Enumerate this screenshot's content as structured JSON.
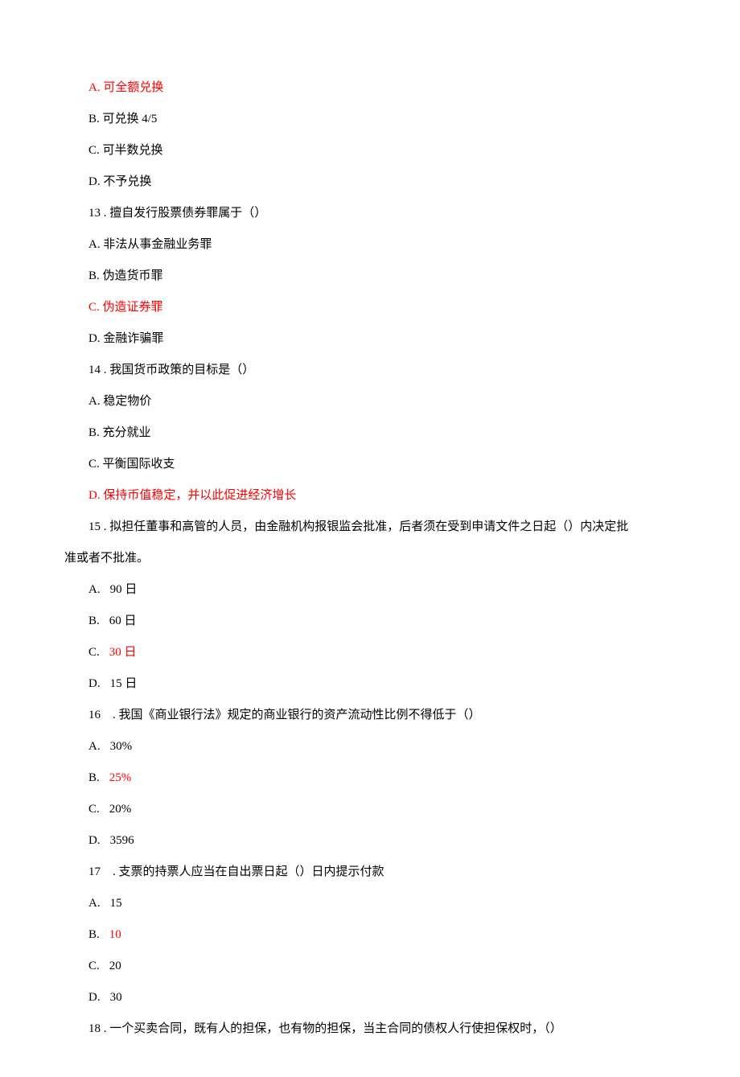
{
  "q12": {
    "a": "A. 可全额兑换",
    "b": "B. 可兑换 4/5",
    "c": "C. 可半数兑换",
    "d": "D. 不予兑换"
  },
  "q13": {
    "stem": "13 . 擅自发行股票债券罪属于（）",
    "a": "A. 非法从事金融业务罪",
    "b": "B. 伪造货币罪",
    "c": "C. 伪造证券罪",
    "d": "D. 金融诈骗罪"
  },
  "q14": {
    "stem": "14 . 我国货币政策的目标是（）",
    "a": "A. 稳定物价",
    "b": "B. 充分就业",
    "c": "C. 平衡国际收支",
    "d": "D. 保持币值稳定，并以此促进经济增长"
  },
  "q15": {
    "stem_line1": "15 . 拟担任董事和高管的人员，由金融机构报银监会批准，后者须在受到申请文件之日起（）内决定批",
    "stem_line2": "准或者不批准。",
    "a_prefix": "A.",
    "a_text": "90 日",
    "b_prefix": "B.",
    "b_text": "60 日",
    "c_prefix": "C.",
    "c_text": "30 日",
    "d_prefix": "D.",
    "d_text": "15 日"
  },
  "q16": {
    "stem": "16 . 我国《商业银行法》规定的商业银行的资产流动性比例不得低于（）",
    "a_prefix": "A.",
    "a_text": "30%",
    "b_prefix": "B.",
    "b_text": "25%",
    "c_prefix": "C.",
    "c_text": "20%",
    "d_prefix": "D.",
    "d_text": "3596"
  },
  "q17": {
    "stem": "17 . 支票的持票人应当在自出票日起（）日内提示付款",
    "a_prefix": "A.",
    "a_text": "15",
    "b_prefix": "B.",
    "b_text": "10",
    "c_prefix": "C.",
    "c_text": "20",
    "d_prefix": "D.",
    "d_text": "30"
  },
  "q18": {
    "stem": "18 . 一个买卖合同，既有人的担保，也有物的担保，当主合同的债权人行使担保权时，（）"
  },
  "colors": {
    "answer": "#ff0000",
    "body": "#000000",
    "bg": "#ffffff"
  }
}
